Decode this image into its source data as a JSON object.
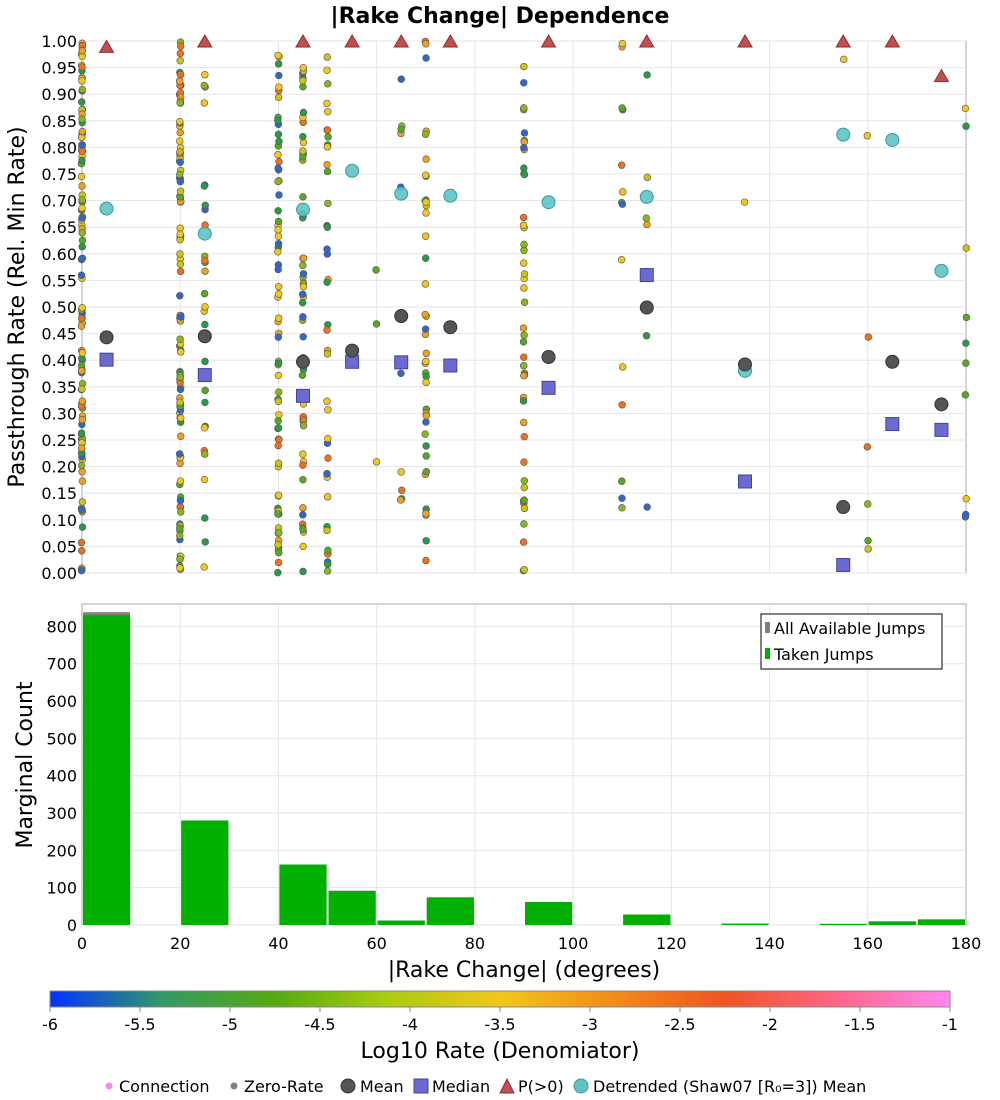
{
  "chart_data": [
    {
      "type": "scatter",
      "title": "|Rake Change| Dependence",
      "xlabel": "",
      "ylabel": "Passthrough Rate (Rel. Min Rate)",
      "xlim": [
        0,
        180
      ],
      "ylim": [
        0,
        1
      ],
      "y_ticks": [
        "0.00",
        "0.05",
        "0.10",
        "0.15",
        "0.20",
        "0.25",
        "0.30",
        "0.35",
        "0.40",
        "0.45",
        "0.50",
        "0.55",
        "0.60",
        "0.65",
        "0.70",
        "0.75",
        "0.80",
        "0.85",
        "0.90",
        "0.95",
        "1.00"
      ],
      "grid": true,
      "series": [
        {
          "name": "Mean",
          "color": "#555555",
          "points": [
            [
              5,
              0.443
            ],
            [
              25,
              0.445
            ],
            [
              45,
              0.397
            ],
            [
              55,
              0.418
            ],
            [
              65,
              0.483
            ],
            [
              75,
              0.462
            ],
            [
              95,
              0.406
            ],
            [
              115,
              0.499
            ],
            [
              135,
              0.392
            ],
            [
              155,
              0.124
            ],
            [
              165,
              0.397
            ],
            [
              175,
              0.317
            ]
          ]
        },
        {
          "name": "Median",
          "color": "#6a6ad0",
          "points": [
            [
              5,
              0.401
            ],
            [
              25,
              0.372
            ],
            [
              45,
              0.333
            ],
            [
              55,
              0.397
            ],
            [
              65,
              0.396
            ],
            [
              75,
              0.39
            ],
            [
              95,
              0.348
            ],
            [
              115,
              0.56
            ],
            [
              135,
              0.172
            ],
            [
              155,
              0.015
            ],
            [
              165,
              0.28
            ],
            [
              175,
              0.269
            ]
          ]
        },
        {
          "name": "P(>0)",
          "color": "#c0504d",
          "points": [
            [
              5,
              0.99
            ],
            [
              25,
              1.0
            ],
            [
              45,
              1.0
            ],
            [
              55,
              1.0
            ],
            [
              65,
              1.0
            ],
            [
              75,
              1.0
            ],
            [
              95,
              1.0
            ],
            [
              115,
              1.0
            ],
            [
              135,
              1.0
            ],
            [
              155,
              1.0
            ],
            [
              165,
              1.0
            ],
            [
              175,
              0.935
            ]
          ]
        },
        {
          "name": "Detrended (Shaw07 [R₀=3]) Mean",
          "color": "#5ec4c4",
          "points": [
            [
              5,
              0.685
            ],
            [
              25,
              0.638
            ],
            [
              45,
              0.683
            ],
            [
              55,
              0.756
            ],
            [
              65,
              0.713
            ],
            [
              75,
              0.709
            ],
            [
              95,
              0.697
            ],
            [
              115,
              0.707
            ],
            [
              135,
              0.38
            ],
            [
              155,
              0.824
            ],
            [
              165,
              0.814
            ],
            [
              175,
              0.568
            ]
          ]
        }
      ],
      "connection_columns": [
        {
          "x": 0,
          "count": 120
        },
        {
          "x": 20,
          "count": 110
        },
        {
          "x": 25,
          "count": 28
        },
        {
          "x": 40,
          "count": 70
        },
        {
          "x": 45,
          "count": 55
        },
        {
          "x": 50,
          "count": 40
        },
        {
          "x": 60,
          "count": 3
        },
        {
          "x": 65,
          "count": 10
        },
        {
          "x": 70,
          "count": 40
        },
        {
          "x": 90,
          "count": 45
        },
        {
          "x": 110,
          "count": 14
        },
        {
          "x": 115,
          "count": 6
        },
        {
          "x": 135,
          "count": 1
        },
        {
          "x": 155,
          "count": 1
        },
        {
          "x": 160,
          "count": 6
        },
        {
          "x": 180,
          "count": 10
        }
      ]
    },
    {
      "type": "bar",
      "title": "",
      "xlabel": "|Rake Change| (degrees)",
      "ylabel": "Marginal Count",
      "xlim": [
        0,
        180
      ],
      "ylim": [
        0,
        860
      ],
      "x_ticks": [
        "0",
        "20",
        "40",
        "60",
        "80",
        "100",
        "120",
        "140",
        "160",
        "180"
      ],
      "y_ticks": [
        "0",
        "100",
        "200",
        "300",
        "400",
        "500",
        "600",
        "700",
        "800"
      ],
      "bin_width": 10,
      "categories": [
        5,
        25,
        45,
        55,
        65,
        75,
        95,
        115,
        135,
        155,
        165,
        175
      ],
      "series": [
        {
          "name": "All Available Jumps",
          "color": "#808080",
          "values": [
            838,
            280,
            162,
            92,
            12,
            74,
            62,
            28,
            4,
            3,
            10,
            15
          ]
        },
        {
          "name": "Taken Jumps",
          "color": "#00b000",
          "values": [
            830,
            280,
            162,
            91,
            12,
            74,
            61,
            28,
            3,
            3,
            9,
            15
          ]
        }
      ],
      "legend": "top-right"
    }
  ],
  "colorbar": {
    "label": "Log10 Rate (Denomiator)",
    "ticks": [
      "-6",
      "-5.5",
      "-5",
      "-4.5",
      "-4",
      "-3.5",
      "-3",
      "-2.5",
      "-2",
      "-1.5",
      "-1"
    ],
    "stops": [
      "#0033ff",
      "#339966",
      "#55aa11",
      "#aacc11",
      "#f2c61a",
      "#f28c1a",
      "#ee5522",
      "#ff6688",
      "#ff88ee"
    ]
  },
  "bottom_legend": [
    {
      "label": "Connection",
      "symbol": "dot",
      "color": "#ff88ee"
    },
    {
      "label": "Zero-Rate",
      "symbol": "dot",
      "color": "#808080"
    },
    {
      "label": "Mean",
      "symbol": "circle",
      "color": "#555555"
    },
    {
      "label": "Median",
      "symbol": "square",
      "color": "#6a6ad0"
    },
    {
      "label": "P(>0)",
      "symbol": "triangle",
      "color": "#c0504d"
    },
    {
      "label": "Detrended (Shaw07 [R₀=3]) Mean",
      "symbol": "circle",
      "color": "#5ec4c4"
    }
  ]
}
